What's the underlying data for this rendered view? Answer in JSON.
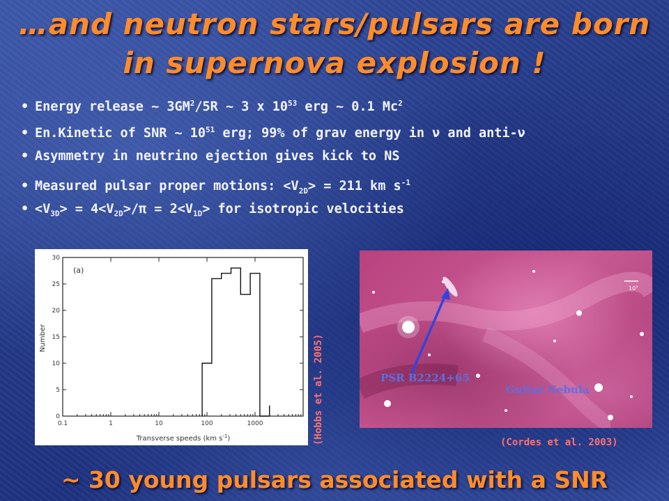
{
  "title": {
    "line1": "…and neutron stars/pulsars are born",
    "line2": "in supernova explosion !"
  },
  "bullets": [
    {
      "bullet": "•",
      "parts": [
        "Energy release ~ 3GM",
        "2",
        "/5R ~ 3 x 10",
        "53",
        " erg ~ 0.1 Mc",
        "2"
      ]
    },
    {
      "bullet": "•",
      "parts": [
        "En.Kinetic of SNR ~ 10",
        "51",
        " erg; 99% of grav energy in ν and anti-ν"
      ]
    },
    {
      "bullet": "•",
      "text": "Asymmetry in neutrino ejection gives kick to NS"
    },
    {
      "bullet": "•",
      "parts": [
        "Measured pulsar proper motions: <V",
        "2D",
        "> = 211 km s",
        "-1"
      ]
    },
    {
      "bullet": "•",
      "parts": [
        "<V",
        "3D",
        "> = 4<V",
        "2D",
        ">/",
        "π",
        " = 2<V",
        "1D",
        "> for isotropic velocities"
      ]
    }
  ],
  "histogram": {
    "panel_label": "(a)",
    "ylabel": "Number",
    "xlabel": "Transverse speeds (km s",
    "xlabel_sup": "-1",
    "xlabel_end": ")",
    "x_ticks": [
      "0.1",
      "1",
      "10",
      "100",
      "1000"
    ],
    "y_ticks": [
      "0",
      "5",
      "10",
      "15",
      "20",
      "25",
      "30"
    ]
  },
  "chart_data": {
    "type": "bar",
    "x_scale": "log",
    "xlabel": "Transverse speeds (km s^-1)",
    "ylabel": "Number",
    "xlim": [
      0.1,
      10000
    ],
    "ylim": [
      0,
      30
    ],
    "bin_edges": [
      79.4,
      125.9,
      199.5,
      316.2,
      501.2,
      794.3,
      1258.9,
      1995.3
    ],
    "values": [
      10,
      26,
      27,
      28,
      23,
      27,
      0,
      2
    ],
    "style": "step outline, no fill",
    "legend": "none"
  },
  "nebula_image": {
    "pulsar_label": "PSR B2224+65",
    "nebula_label": "Guitar Nebula",
    "scale_label": "10\""
  },
  "captions": {
    "hobbs": "(Hobbs et al. 2005)",
    "cordes": "(Cordes et al. 2003)"
  },
  "bottom_line": "~ 30 young pulsars associated with a SNR",
  "colors": {
    "title": "#ff8c2a",
    "bullet_text": "#f4f4ff",
    "caption": "#ff7070",
    "arrow": "#3344dd",
    "nebula_label": "#5a70e0"
  }
}
